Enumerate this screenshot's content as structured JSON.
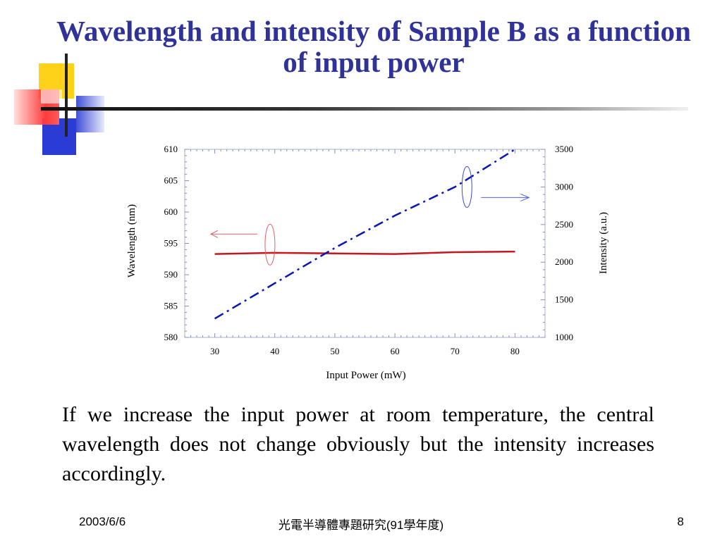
{
  "slide": {
    "title": "Wavelength and intensity of Sample B as a function of input power",
    "paragraph": "If we increase the input power at room temperature, the central wavelength does not change obviously but the intensity increases accordingly.",
    "footer": {
      "date": "2003/6/6",
      "course": "光電半導體專題研究(91學年度)",
      "page": "8"
    },
    "colors": {
      "title": "#2f3399",
      "wavelength_series": "#c8161d",
      "intensity_series": "#0a17b8"
    }
  },
  "chart_data": {
    "type": "line",
    "title": "",
    "xlabel": "Input Power (mW)",
    "ylabel": "Wavelength (nm)",
    "y2label": "Intensity (a.u.)",
    "xlim": [
      25,
      85
    ],
    "ylim": [
      580,
      610
    ],
    "y2lim": [
      1000,
      3500
    ],
    "xticks": [
      30,
      40,
      50,
      60,
      70,
      80
    ],
    "yticks": [
      580,
      585,
      590,
      595,
      600,
      605,
      610
    ],
    "y2ticks": [
      1000,
      1500,
      2000,
      2500,
      3000,
      3500
    ],
    "series": [
      {
        "name": "Wavelength",
        "axis": "left",
        "style": "solid",
        "color": "#c8161d",
        "x": [
          30,
          40,
          50,
          60,
          70,
          80
        ],
        "values": [
          593.3,
          593.5,
          593.4,
          593.3,
          593.6,
          593.7
        ]
      },
      {
        "name": "Intensity",
        "axis": "right",
        "style": "dash-dot",
        "color": "#0a17b8",
        "x": [
          30,
          40,
          50,
          60,
          70,
          80
        ],
        "values": [
          1250,
          1720,
          2190,
          2620,
          3000,
          3500
        ]
      }
    ],
    "annotations": [
      {
        "type": "arrow",
        "series": "Wavelength",
        "direction": "left"
      },
      {
        "type": "arrow",
        "series": "Intensity",
        "direction": "right"
      }
    ]
  }
}
